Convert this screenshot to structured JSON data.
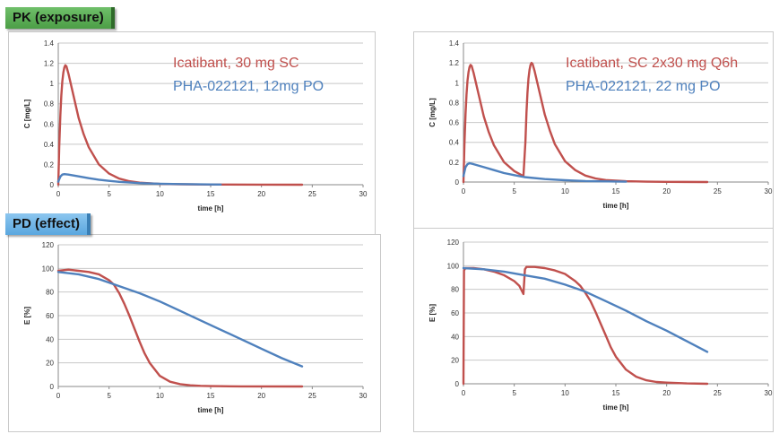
{
  "sections": {
    "pk_label": "PK (exposure)",
    "pd_label": "PD (effect)"
  },
  "colors": {
    "icatibant": "#c0504d",
    "pha": "#4f81bd",
    "grid": "#c8c8c8",
    "axis": "#888888"
  },
  "chart_data": [
    {
      "id": "pk-left",
      "type": "line",
      "xlabel": "time [h]",
      "ylabel": "C [mg/L]",
      "xlim": [
        0,
        30
      ],
      "ylim": [
        0,
        1.4
      ],
      "xticks": [
        0,
        5,
        10,
        15,
        20,
        25,
        30
      ],
      "yticks": [
        0,
        0.2,
        0.4,
        0.6,
        0.8,
        1,
        1.2,
        1.4
      ],
      "ytick_labels": [
        "0",
        "0.2",
        "0.4",
        "0.6",
        "0.8",
        "1",
        "1.2",
        "1.4"
      ],
      "grid": true,
      "legend_position": "top-right",
      "series": [
        {
          "name": "Icatibant, 30 mg SC",
          "color": "#c0504d",
          "x": [
            0,
            0.1,
            0.2,
            0.3,
            0.4,
            0.5,
            0.6,
            0.7,
            0.8,
            1,
            1.5,
            2,
            2.5,
            3,
            4,
            5,
            6,
            7,
            8,
            10,
            12,
            15,
            20,
            24
          ],
          "y": [
            0,
            0.38,
            0.68,
            0.88,
            1.02,
            1.11,
            1.16,
            1.18,
            1.17,
            1.1,
            0.88,
            0.66,
            0.5,
            0.37,
            0.2,
            0.11,
            0.06,
            0.035,
            0.02,
            0.008,
            0.004,
            0.002,
            0.001,
            0
          ]
        },
        {
          "name": "PHA-022121, 12mg PO",
          "color": "#4f81bd",
          "x": [
            0,
            0.2,
            0.4,
            0.6,
            1,
            2,
            3,
            4,
            5,
            6,
            8,
            10,
            12,
            15,
            16
          ],
          "y": [
            0.03,
            0.08,
            0.1,
            0.105,
            0.1,
            0.082,
            0.065,
            0.05,
            0.038,
            0.028,
            0.016,
            0.01,
            0.006,
            0.003,
            0.002
          ]
        }
      ]
    },
    {
      "id": "pk-right",
      "type": "line",
      "xlabel": "time [h]",
      "ylabel": "C [mg/L]",
      "xlim": [
        0,
        30
      ],
      "ylim": [
        0,
        1.4
      ],
      "xticks": [
        0,
        5,
        10,
        15,
        20,
        25,
        30
      ],
      "yticks": [
        0,
        0.2,
        0.4,
        0.6,
        0.8,
        1,
        1.2,
        1.4
      ],
      "ytick_labels": [
        "0",
        "0.2",
        "0.4",
        "0.6",
        "0.8",
        "1",
        "1.2",
        "1.4"
      ],
      "grid": true,
      "legend_position": "top-right",
      "series": [
        {
          "name": "Icatibant, SC 2x30 mg Q6h",
          "color": "#c0504d",
          "x": [
            0,
            0.1,
            0.2,
            0.3,
            0.4,
            0.5,
            0.6,
            0.7,
            0.8,
            1,
            1.5,
            2,
            2.5,
            3,
            4,
            5,
            5.9,
            6.1,
            6.2,
            6.3,
            6.4,
            6.5,
            6.6,
            6.7,
            6.8,
            7,
            7.5,
            8,
            8.5,
            9,
            10,
            11,
            12,
            13,
            14,
            16,
            18,
            20,
            24
          ],
          "y": [
            0,
            0.38,
            0.68,
            0.88,
            1.02,
            1.11,
            1.16,
            1.18,
            1.17,
            1.1,
            0.88,
            0.66,
            0.5,
            0.37,
            0.2,
            0.11,
            0.06,
            0.4,
            0.7,
            0.9,
            1.04,
            1.13,
            1.18,
            1.2,
            1.19,
            1.12,
            0.9,
            0.68,
            0.52,
            0.38,
            0.21,
            0.12,
            0.065,
            0.036,
            0.02,
            0.008,
            0.004,
            0.002,
            0
          ]
        },
        {
          "name": "PHA-022121, 22 mg PO",
          "color": "#4f81bd",
          "x": [
            0,
            0.2,
            0.4,
            0.6,
            1,
            2,
            3,
            4,
            5,
            6,
            8,
            10,
            12,
            15,
            16
          ],
          "y": [
            0.06,
            0.15,
            0.18,
            0.19,
            0.18,
            0.15,
            0.12,
            0.09,
            0.07,
            0.05,
            0.03,
            0.018,
            0.01,
            0.005,
            0.004
          ]
        }
      ]
    },
    {
      "id": "pd-left",
      "type": "line",
      "xlabel": "time [h]",
      "ylabel": "E [%]",
      "xlim": [
        0,
        30
      ],
      "ylim": [
        0,
        120
      ],
      "xticks": [
        0,
        5,
        10,
        15,
        20,
        25,
        30
      ],
      "yticks": [
        0,
        20,
        40,
        60,
        80,
        100,
        120
      ],
      "ytick_labels": [
        "0",
        "20",
        "40",
        "60",
        "80",
        "100",
        "120"
      ],
      "grid": true,
      "series": [
        {
          "color": "#c0504d",
          "x": [
            0,
            1,
            2,
            3,
            4,
            5,
            5.5,
            6,
            6.5,
            7,
            7.5,
            8,
            8.5,
            9,
            10,
            11,
            12,
            13,
            14,
            15,
            16,
            18,
            24
          ],
          "y": [
            98,
            99,
            98,
            97,
            95,
            90,
            86,
            79,
            70,
            60,
            49,
            38,
            28,
            20,
            9,
            4,
            2,
            1,
            0.5,
            0.3,
            0.2,
            0.1,
            0
          ]
        },
        {
          "color": "#4f81bd",
          "x": [
            0,
            2,
            4,
            6,
            8,
            10,
            12,
            14,
            16,
            18,
            20,
            22,
            24
          ],
          "y": [
            97,
            95,
            91,
            85,
            79,
            72,
            64,
            56,
            48,
            40,
            32,
            24,
            17
          ]
        }
      ]
    },
    {
      "id": "pd-right",
      "type": "line",
      "xlabel": "time [h]",
      "ylabel": "E [%]",
      "xlim": [
        0,
        30
      ],
      "ylim": [
        0,
        120
      ],
      "xticks": [
        0,
        5,
        10,
        15,
        20,
        25,
        30
      ],
      "yticks": [
        0,
        20,
        40,
        60,
        80,
        100,
        120
      ],
      "ytick_labels": [
        "0",
        "20",
        "40",
        "60",
        "80",
        "100",
        "120"
      ],
      "grid": true,
      "series": [
        {
          "color": "#c0504d",
          "x": [
            0,
            0.05,
            0.2,
            1,
            2,
            3,
            4,
            5,
            5.5,
            5.9,
            6.05,
            6.2,
            7,
            8,
            9,
            10,
            11,
            11.5,
            12,
            12.5,
            13,
            13.5,
            14,
            14.5,
            15,
            16,
            17,
            18,
            19,
            20,
            22,
            24
          ],
          "y": [
            0,
            96,
            98,
            98,
            97,
            95,
            92,
            87,
            83,
            76,
            97,
            99,
            99,
            98,
            96,
            93,
            87,
            83,
            77,
            70,
            61,
            51,
            41,
            31,
            23,
            12,
            6,
            3,
            1.5,
            1,
            0.3,
            0
          ]
        },
        {
          "color": "#4f81bd",
          "x": [
            0,
            2,
            4,
            6,
            8,
            10,
            12,
            14,
            16,
            18,
            20,
            22,
            24
          ],
          "y": [
            98,
            97,
            95,
            92,
            89,
            84,
            78,
            70,
            62,
            53,
            45,
            36,
            27
          ]
        }
      ]
    }
  ]
}
